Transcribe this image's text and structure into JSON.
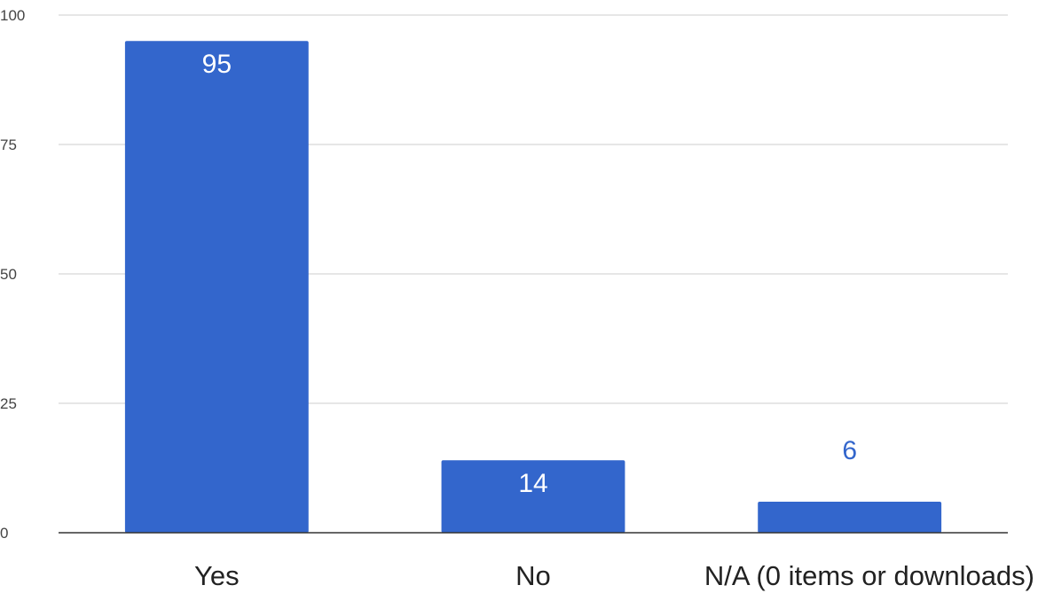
{
  "chart_data": {
    "type": "bar",
    "categories": [
      "Yes",
      "No",
      "N/A (0 items or downloads)"
    ],
    "values": [
      95,
      14,
      6
    ],
    "ylim": [
      0,
      100
    ],
    "yticks": [
      0,
      25,
      50,
      75,
      100
    ],
    "ytick_labels": [
      "0",
      "25",
      "50",
      "75",
      "100"
    ],
    "data_labels": [
      "95",
      "14",
      "6"
    ],
    "title": "",
    "xlabel": "",
    "ylabel": "",
    "grid": true,
    "legend": "none",
    "colors": {
      "bar": "#3366cc",
      "label_inside": "#ffffff",
      "label_outside": "#3366cc",
      "grid": "#cccccc",
      "axis": "#333333"
    }
  }
}
